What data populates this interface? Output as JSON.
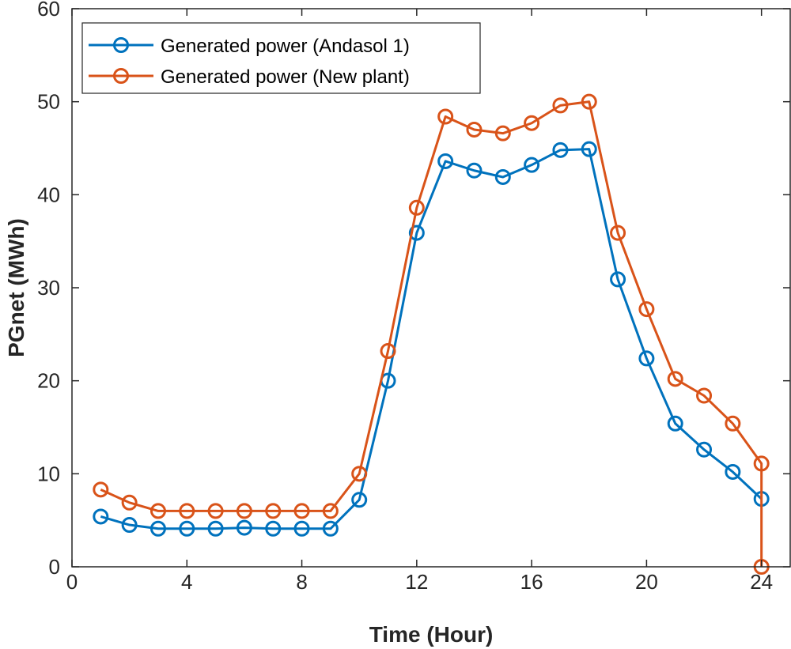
{
  "chart_data": {
    "type": "line",
    "xlabel": "Time (Hour)",
    "ylabel": "PGnet (MWh)",
    "xlim": [
      0,
      25
    ],
    "ylim": [
      0,
      60
    ],
    "xticks": [
      0,
      4,
      8,
      12,
      16,
      20,
      24
    ],
    "yticks": [
      0,
      10,
      20,
      30,
      40,
      50,
      60
    ],
    "grid": false,
    "legend_position": "top-left",
    "series": [
      {
        "name": "Generated power (Andasol 1)",
        "color": "#0072BD",
        "x": [
          1,
          2,
          3,
          4,
          5,
          6,
          7,
          8,
          9,
          10,
          11,
          12,
          13,
          14,
          15,
          16,
          17,
          18,
          19,
          20,
          21,
          22,
          23,
          24
        ],
        "values": [
          5.4,
          4.5,
          4.1,
          4.1,
          4.1,
          4.2,
          4.1,
          4.1,
          4.1,
          7.2,
          20.0,
          35.9,
          43.6,
          42.6,
          41.9,
          43.2,
          44.8,
          44.9,
          30.9,
          22.4,
          15.4,
          12.6,
          10.2,
          7.3
        ]
      },
      {
        "name": "Generated power (New plant)",
        "color": "#D95319",
        "x": [
          1,
          2,
          3,
          4,
          5,
          6,
          7,
          8,
          9,
          10,
          11,
          12,
          13,
          14,
          15,
          16,
          17,
          18,
          19,
          20,
          21,
          22,
          23,
          24,
          24
        ],
        "values": [
          8.3,
          6.9,
          6.0,
          6.0,
          6.0,
          6.0,
          6.0,
          6.0,
          6.0,
          10.0,
          23.2,
          38.6,
          48.4,
          47.0,
          46.6,
          47.7,
          49.6,
          50.0,
          35.9,
          27.7,
          20.2,
          18.4,
          15.4,
          11.1,
          0
        ]
      }
    ]
  }
}
